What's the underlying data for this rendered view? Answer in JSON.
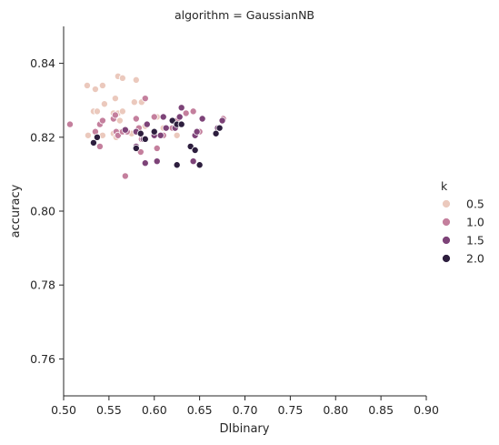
{
  "chart_data": {
    "type": "scatter",
    "title": "algorithm = GaussianNB",
    "xlabel": "DIbinary",
    "ylabel": "accuracy",
    "xlim": [
      0.5,
      0.9
    ],
    "ylim": [
      0.75,
      0.85
    ],
    "xticks": [
      "0.50",
      "0.55",
      "0.60",
      "0.65",
      "0.70",
      "0.75",
      "0.80",
      "0.85",
      "0.90"
    ],
    "yticks": [
      "0.76",
      "0.78",
      "0.80",
      "0.82",
      "0.84"
    ],
    "grid": false,
    "legend": {
      "title": "k",
      "placement": "right",
      "entries": [
        {
          "label": "0.5",
          "color": "#ebc9bd"
        },
        {
          "label": "1.0",
          "color": "#c47f9d"
        },
        {
          "label": "1.5",
          "color": "#7d4378"
        },
        {
          "label": "2.0",
          "color": "#2d1e3e"
        }
      ]
    },
    "series": [
      {
        "name": "0.5",
        "color": "#ebc9bd",
        "points": [
          [
            0.526,
            0.834
          ],
          [
            0.535,
            0.833
          ],
          [
            0.543,
            0.834
          ],
          [
            0.56,
            0.8365
          ],
          [
            0.565,
            0.836
          ],
          [
            0.58,
            0.8355
          ],
          [
            0.533,
            0.827
          ],
          [
            0.537,
            0.827
          ],
          [
            0.545,
            0.829
          ],
          [
            0.557,
            0.8305
          ],
          [
            0.555,
            0.8265
          ],
          [
            0.56,
            0.8265
          ],
          [
            0.565,
            0.827
          ],
          [
            0.578,
            0.8295
          ],
          [
            0.586,
            0.8295
          ],
          [
            0.562,
            0.8245
          ],
          [
            0.555,
            0.821
          ],
          [
            0.56,
            0.8215
          ],
          [
            0.558,
            0.82
          ],
          [
            0.527,
            0.8205
          ],
          [
            0.543,
            0.8205
          ],
          [
            0.575,
            0.821
          ],
          [
            0.59,
            0.823
          ],
          [
            0.6,
            0.8215
          ],
          [
            0.61,
            0.8225
          ],
          [
            0.625,
            0.8205
          ],
          [
            0.603,
            0.8255
          ]
        ]
      },
      {
        "name": "1.0",
        "color": "#c47f9d",
        "points": [
          [
            0.507,
            0.8235
          ],
          [
            0.535,
            0.8215
          ],
          [
            0.54,
            0.8235
          ],
          [
            0.543,
            0.8245
          ],
          [
            0.555,
            0.825
          ],
          [
            0.557,
            0.826
          ],
          [
            0.558,
            0.8215
          ],
          [
            0.56,
            0.8205
          ],
          [
            0.565,
            0.8215
          ],
          [
            0.57,
            0.8215
          ],
          [
            0.58,
            0.825
          ],
          [
            0.583,
            0.8225
          ],
          [
            0.586,
            0.8195
          ],
          [
            0.59,
            0.8305
          ],
          [
            0.6,
            0.8255
          ],
          [
            0.603,
            0.817
          ],
          [
            0.61,
            0.8205
          ],
          [
            0.62,
            0.8225
          ],
          [
            0.625,
            0.8245
          ],
          [
            0.635,
            0.8265
          ],
          [
            0.643,
            0.827
          ],
          [
            0.65,
            0.8215
          ],
          [
            0.676,
            0.825
          ],
          [
            0.585,
            0.816
          ],
          [
            0.568,
            0.8095
          ],
          [
            0.54,
            0.8175
          ]
        ]
      },
      {
        "name": "1.5",
        "color": "#7d4378",
        "points": [
          [
            0.568,
            0.822
          ],
          [
            0.58,
            0.8215
          ],
          [
            0.588,
            0.8195
          ],
          [
            0.592,
            0.8235
          ],
          [
            0.6,
            0.8205
          ],
          [
            0.603,
            0.8135
          ],
          [
            0.607,
            0.8205
          ],
          [
            0.613,
            0.8225
          ],
          [
            0.623,
            0.8225
          ],
          [
            0.628,
            0.8255
          ],
          [
            0.63,
            0.828
          ],
          [
            0.64,
            0.8175
          ],
          [
            0.643,
            0.8135
          ],
          [
            0.645,
            0.8205
          ],
          [
            0.647,
            0.8215
          ],
          [
            0.653,
            0.825
          ],
          [
            0.67,
            0.8225
          ],
          [
            0.675,
            0.8245
          ],
          [
            0.58,
            0.8175
          ],
          [
            0.61,
            0.8255
          ],
          [
            0.59,
            0.813
          ]
        ]
      },
      {
        "name": "2.0",
        "color": "#2d1e3e",
        "points": [
          [
            0.533,
            0.8185
          ],
          [
            0.537,
            0.82
          ],
          [
            0.58,
            0.817
          ],
          [
            0.585,
            0.821
          ],
          [
            0.59,
            0.8195
          ],
          [
            0.6,
            0.8215
          ],
          [
            0.62,
            0.8245
          ],
          [
            0.625,
            0.8235
          ],
          [
            0.63,
            0.8235
          ],
          [
            0.625,
            0.8125
          ],
          [
            0.64,
            0.8175
          ],
          [
            0.645,
            0.8165
          ],
          [
            0.65,
            0.8125
          ],
          [
            0.668,
            0.821
          ],
          [
            0.672,
            0.8225
          ]
        ]
      }
    ]
  }
}
